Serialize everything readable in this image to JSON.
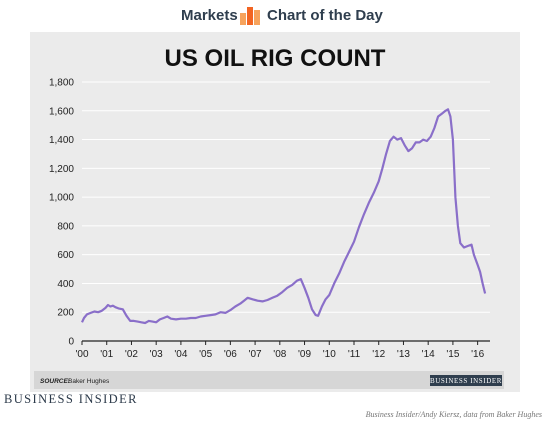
{
  "header": {
    "section": "Markets",
    "feature": "Chart of the Day"
  },
  "colors": {
    "line": "#8a6fc9",
    "panel": "#ebebeb",
    "grid": "#ffffff",
    "navy": "#2f3e4e",
    "logo_orange": "#f26522",
    "logo_light": "#f7a35c"
  },
  "chart_data": {
    "type": "line",
    "title": "US OIL RIG COUNT",
    "xlabel": "",
    "ylabel": "",
    "ylim": [
      0,
      1800
    ],
    "xlim": [
      2000,
      2016.5
    ],
    "grid": true,
    "y_ticks": [
      0,
      200,
      400,
      600,
      800,
      1000,
      1200,
      1400,
      1600,
      1800
    ],
    "y_tick_labels": [
      "0",
      "200",
      "400",
      "600",
      "800",
      "1,000",
      "1,200",
      "1,400",
      "1,600",
      "1,800"
    ],
    "x_ticks": [
      2000,
      2001,
      2002,
      2003,
      2004,
      2005,
      2006,
      2007,
      2008,
      2009,
      2010,
      2011,
      2012,
      2013,
      2014,
      2015,
      2016
    ],
    "x_tick_labels": [
      "'00",
      "'01",
      "'02",
      "'03",
      "'04",
      "'05",
      "'06",
      "'07",
      "'08",
      "'09",
      "'10",
      "'11",
      "'12",
      "'13",
      "'14",
      "'15",
      "'16"
    ],
    "series": [
      {
        "x": [
          2000.0,
          2000.08,
          2000.2,
          2000.35,
          2000.5,
          2000.65,
          2000.8,
          2000.95,
          2001.05,
          2001.15,
          2001.25,
          2001.35,
          2001.5,
          2001.65,
          2001.8,
          2001.95,
          2002.1,
          2002.25,
          2002.4,
          2002.55,
          2002.7,
          2002.85,
          2003.0,
          2003.15,
          2003.3,
          2003.45,
          2003.6,
          2003.8,
          2004.0,
          2004.2,
          2004.4,
          2004.6,
          2004.8,
          2005.0,
          2005.2,
          2005.4,
          2005.6,
          2005.8,
          2006.0,
          2006.2,
          2006.4,
          2006.55,
          2006.7,
          2006.9,
          2007.1,
          2007.3,
          2007.5,
          2007.7,
          2007.9,
          2008.1,
          2008.3,
          2008.5,
          2008.7,
          2008.85,
          2009.0,
          2009.15,
          2009.3,
          2009.45,
          2009.55,
          2009.7,
          2009.85,
          2010.0,
          2010.2,
          2010.4,
          2010.6,
          2010.8,
          2011.0,
          2011.2,
          2011.4,
          2011.6,
          2011.8,
          2012.0,
          2012.15,
          2012.3,
          2012.45,
          2012.6,
          2012.75,
          2012.9,
          2013.05,
          2013.2,
          2013.35,
          2013.5,
          2013.65,
          2013.8,
          2013.95,
          2014.1,
          2014.25,
          2014.4,
          2014.55,
          2014.7,
          2014.8,
          2014.9,
          2015.0,
          2015.1,
          2015.2,
          2015.3,
          2015.45,
          2015.6,
          2015.75,
          2015.85,
          2016.0,
          2016.1,
          2016.2,
          2016.3
        ],
        "values": [
          130,
          160,
          185,
          195,
          205,
          200,
          210,
          230,
          250,
          240,
          245,
          235,
          225,
          220,
          175,
          140,
          140,
          135,
          130,
          125,
          140,
          135,
          130,
          150,
          160,
          170,
          155,
          150,
          155,
          155,
          160,
          160,
          170,
          175,
          180,
          185,
          200,
          195,
          215,
          240,
          260,
          280,
          300,
          290,
          280,
          275,
          285,
          300,
          315,
          340,
          370,
          390,
          420,
          430,
          370,
          300,
          220,
          180,
          175,
          240,
          290,
          320,
          400,
          470,
          550,
          620,
          690,
          790,
          880,
          960,
          1030,
          1110,
          1200,
          1300,
          1390,
          1420,
          1400,
          1410,
          1360,
          1320,
          1340,
          1380,
          1380,
          1400,
          1390,
          1420,
          1480,
          1560,
          1580,
          1600,
          1610,
          1560,
          1400,
          1000,
          800,
          680,
          650,
          660,
          670,
          600,
          530,
          480,
          400,
          330
        ]
      }
    ],
    "source_label": "SOURCE:",
    "source": "Baker Hughes",
    "badge": "BUSINESS INSIDER"
  },
  "footer": {
    "brand": "BUSINESS INSIDER",
    "credit": "Business Insider/Andy Kiersz, data from Baker Hughes"
  }
}
